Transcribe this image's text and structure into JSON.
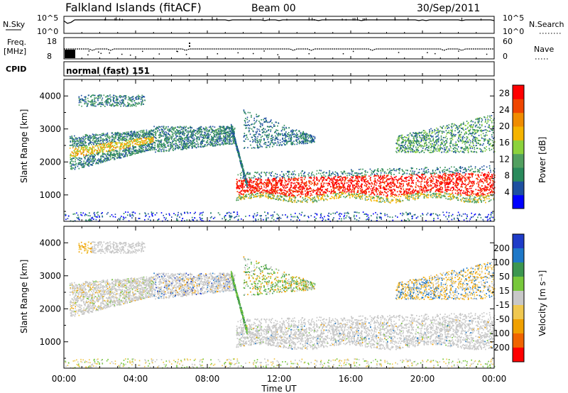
{
  "header": {
    "station": "Falkland Islands (fitACF)",
    "beam": "Beam 00",
    "date": "30/Sep/2011"
  },
  "strip_labels": {
    "nsky": "N.Sky",
    "freq_line1": "Freq.",
    "freq_line2": "[MHz]",
    "cpid": "CPID",
    "nsearch": "N.Search",
    "nave": "Nave",
    "nsky_ticks": [
      "10^5",
      "10^0"
    ],
    "nsearch_ticks": [
      "10^5",
      "10^0"
    ],
    "freq_ticks": [
      "18",
      "8"
    ],
    "nave_ticks": [
      "60",
      "0"
    ],
    "cpid_value": "normal (fast) 151"
  },
  "colors": {
    "power": [
      "#0000ff",
      "#1e50a0",
      "#2a8a5c",
      "#52a060",
      "#8cd23c",
      "#f5b400",
      "#f08c00",
      "#f04600",
      "#ff0000"
    ],
    "velocity": [
      "#1e3cc8",
      "#1e78c8",
      "#3c9650",
      "#78c83c",
      "#c8c8c8",
      "#f0c850",
      "#f0a000",
      "#f06400",
      "#ff0000"
    ]
  },
  "chart_data": [
    {
      "type": "heatmap",
      "name": "power-panel",
      "ylabel": "Slant Range [km]",
      "xlabel": "Time UT",
      "x_ticks": [
        "00:00",
        "04:00",
        "08:00",
        "12:00",
        "16:00",
        "20:00",
        "00:00"
      ],
      "y_ticks": [
        1000,
        2000,
        3000,
        4000
      ],
      "ylim": [
        200,
        4500
      ],
      "xlim_hours": [
        0,
        24
      ],
      "colorbar_label": "Power [dB]",
      "colorbar_ticks": [
        4,
        8,
        12,
        16,
        20,
        24,
        28
      ],
      "colorbar_range": [
        0,
        30
      ]
    },
    {
      "type": "heatmap",
      "name": "velocity-panel",
      "ylabel": "Slant Range [km]",
      "xlabel": "Time UT",
      "x_ticks": [
        "00:00",
        "04:00",
        "08:00",
        "12:00",
        "16:00",
        "20:00",
        "00:00"
      ],
      "y_ticks": [
        1000,
        2000,
        3000,
        4000
      ],
      "ylim": [
        200,
        4500
      ],
      "xlim_hours": [
        0,
        24
      ],
      "colorbar_label": "Velocity [m s⁻¹]",
      "colorbar_ticks": [
        200,
        100,
        50,
        15,
        -15,
        -50,
        -100,
        -200
      ]
    }
  ]
}
